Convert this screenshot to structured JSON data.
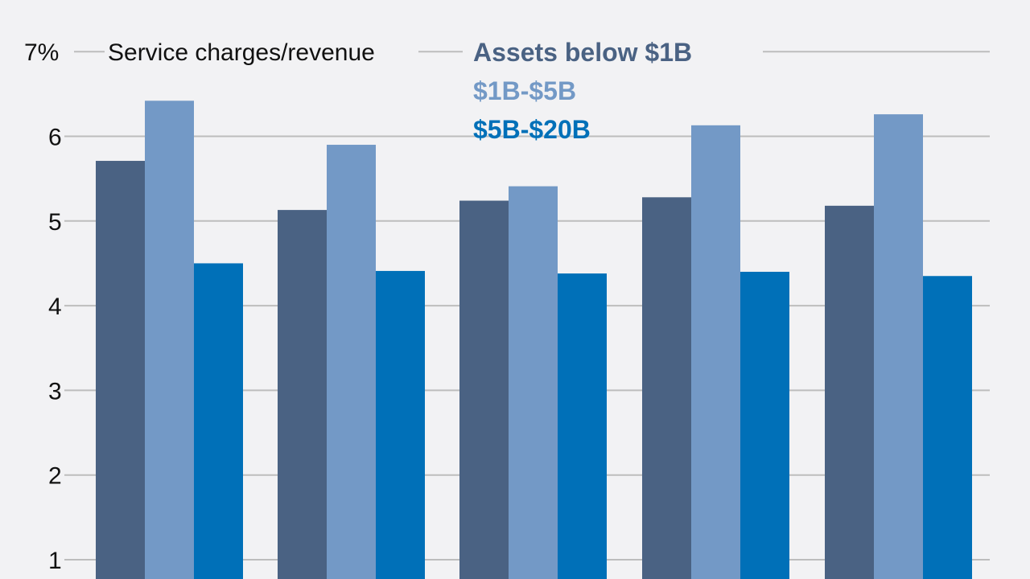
{
  "chart_data": {
    "type": "bar",
    "title": "",
    "ylabel": "Service charges/revenue",
    "ylim": [
      0,
      7
    ],
    "yticks": [
      {
        "value": 7,
        "label": "7%"
      },
      {
        "value": 6,
        "label": "6"
      },
      {
        "value": 5,
        "label": "5"
      },
      {
        "value": 4,
        "label": "4"
      },
      {
        "value": 3,
        "label": "3"
      },
      {
        "value": 2,
        "label": "2"
      },
      {
        "value": 1,
        "label": "1"
      }
    ],
    "grid": true,
    "legend_placement": "top-right",
    "categories": [
      "",
      "",
      "",
      "",
      ""
    ],
    "series": [
      {
        "name": "Assets below $1B",
        "color": "#4a6283",
        "values": [
          5.71,
          5.13,
          5.24,
          5.28,
          5.18
        ]
      },
      {
        "name": "$1B-$5B",
        "color": "#7399c6",
        "values": [
          6.42,
          5.9,
          5.41,
          6.13,
          6.26
        ]
      },
      {
        "name": "$5B-$20B",
        "color": "#0070b8",
        "values": [
          4.5,
          4.41,
          4.38,
          4.4,
          4.35
        ]
      }
    ]
  }
}
